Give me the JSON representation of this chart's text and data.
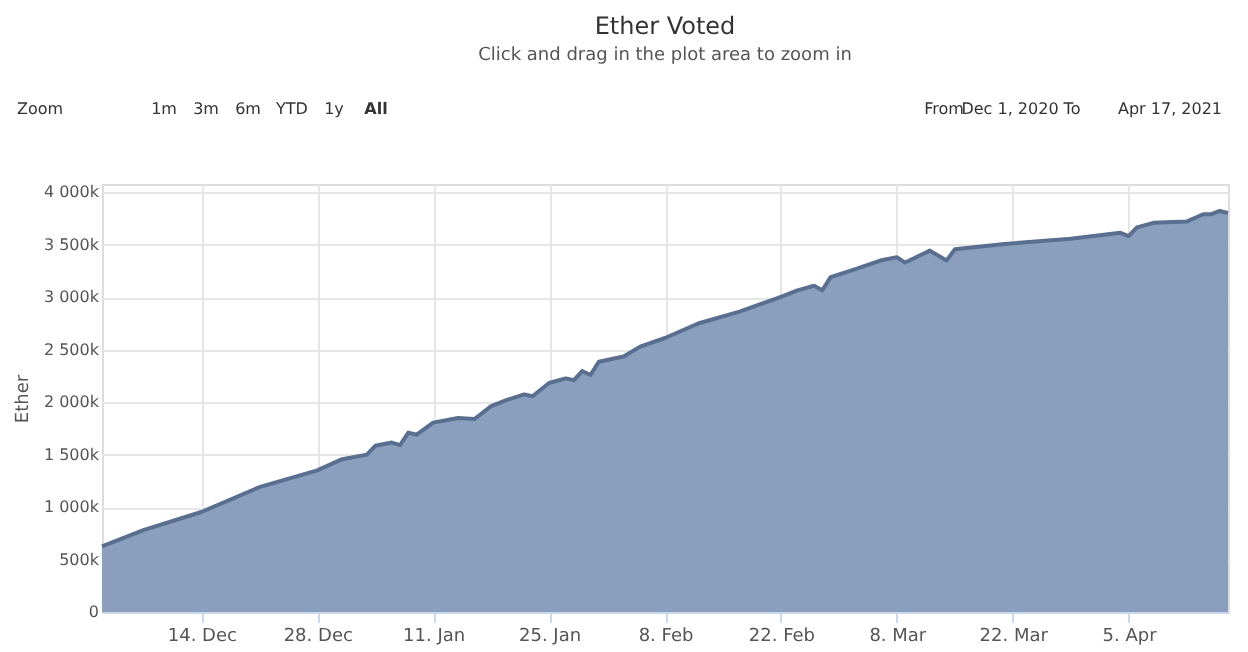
{
  "chart_data": {
    "type": "area",
    "title": "Ether Voted",
    "subtitle": "Click and drag in the plot area to zoom in",
    "ylabel": "Ether",
    "annotations": [
      "Zoom",
      "1m",
      "3m",
      "6m",
      "YTD",
      "1y",
      "All",
      "From",
      "Dec 1, 2020",
      "To",
      "Apr 17, 2021"
    ],
    "x": [
      "2020-12-02",
      "2020-12-07",
      "2020-12-14",
      "2020-12-21",
      "2020-12-28",
      "2020-12-31",
      "2021-01-03",
      "2021-01-04",
      "2021-01-06",
      "2021-01-07",
      "2021-01-08",
      "2021-01-09",
      "2021-01-11",
      "2021-01-14",
      "2021-01-16",
      "2021-01-18",
      "2021-01-20",
      "2021-01-22",
      "2021-01-23",
      "2021-01-25",
      "2021-01-27",
      "2021-01-28",
      "2021-01-29",
      "2021-01-30",
      "2021-01-31",
      "2021-02-03",
      "2021-02-05",
      "2021-02-08",
      "2021-02-12",
      "2021-02-17",
      "2021-02-22",
      "2021-02-24",
      "2021-02-26",
      "2021-02-27",
      "2021-02-28",
      "2021-03-03",
      "2021-03-06",
      "2021-03-08",
      "2021-03-09",
      "2021-03-12",
      "2021-03-14",
      "2021-03-15",
      "2021-03-21",
      "2021-03-29",
      "2021-04-04",
      "2021-04-05",
      "2021-04-06",
      "2021-04-08",
      "2021-04-12",
      "2021-04-14",
      "2021-04-15",
      "2021-04-16",
      "2021-04-17"
    ],
    "series": [
      {
        "color": "#8a9fbd",
        "values": [
          625000,
          780000,
          953000,
          1190000,
          1350000,
          1457000,
          1500000,
          1584000,
          1615000,
          1590000,
          1710000,
          1690000,
          1805000,
          1850000,
          1840000,
          1962000,
          2025000,
          2075000,
          2057000,
          2183000,
          2227000,
          2210000,
          2297000,
          2259000,
          2385000,
          2435000,
          2530000,
          2612000,
          2750000,
          2864000,
          3003000,
          3066000,
          3110000,
          3066000,
          3192000,
          3268000,
          3350000,
          3382000,
          3331000,
          3445000,
          3350000,
          3457000,
          3508000,
          3558000,
          3615000,
          3584000,
          3666000,
          3710000,
          3722000,
          3792000,
          3792000,
          3823000,
          3804000
        ]
      }
    ],
    "xlim": [
      "2020-12-02",
      "2021-04-17"
    ],
    "xticks": [
      {
        "value": "2020-12-14",
        "label": "14. Dec"
      },
      {
        "value": "2020-12-28",
        "label": "28. Dec"
      },
      {
        "value": "2021-01-11",
        "label": "11. Jan"
      },
      {
        "value": "2021-01-25",
        "label": "25. Jan"
      },
      {
        "value": "2021-02-08",
        "label": "8. Feb"
      },
      {
        "value": "2021-02-22",
        "label": "22. Feb"
      },
      {
        "value": "2021-03-08",
        "label": "8. Mar"
      },
      {
        "value": "2021-03-22",
        "label": "22. Mar"
      },
      {
        "value": "2021-04-05",
        "label": "5. Apr"
      }
    ],
    "ylim": [
      0,
      4080000
    ],
    "yticks": [
      0,
      {
        "value": 500000,
        "label": "500k"
      },
      {
        "value": 1000000,
        "label": "1 000k"
      },
      {
        "value": 1500000,
        "label": "1 500k"
      },
      {
        "value": 2000000,
        "label": "2 000k"
      },
      {
        "value": 2500000,
        "label": "2 500k"
      },
      {
        "value": 3000000,
        "label": "3 000k"
      },
      {
        "value": 3500000,
        "label": "3 500k"
      },
      {
        "value": 4000000,
        "label": "4 000k"
      }
    ],
    "grid": true
  }
}
